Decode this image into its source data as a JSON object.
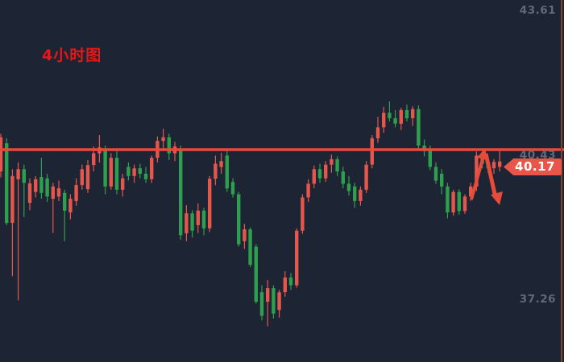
{
  "header": {
    "title": "4小时图"
  },
  "price_axis": {
    "top": "43.61",
    "mid": "40.43",
    "bottom": "37.26",
    "current": "40.17"
  },
  "colors": {
    "background": "#1d2433",
    "candle_up": "#e4574c",
    "candle_down": "#2ea04d",
    "resistance_line": "#e74b3a",
    "annotation_arrow": "#e74b3a",
    "badge": "#e8564b",
    "title_red": "#e81616",
    "axis_text": "#5f6979",
    "axis_border": "#7c4431"
  },
  "chart_data": {
    "type": "candlestick",
    "title": "4小时图",
    "grid": false,
    "legend": false,
    "price_axis_labels": [
      43.61,
      40.43,
      37.26
    ],
    "resistance_level": 40.43,
    "current_price": 40.17,
    "ylim": [
      35.8,
      43.7
    ],
    "up_color": "#e4574c",
    "down_color": "#2ea04d",
    "annotation": {
      "type": "arrow",
      "direction": "up-to-resistance-then-down",
      "color": "#e74b3a"
    },
    "candles": [
      [
        39.95,
        40.78,
        39.82,
        40.7
      ],
      [
        40.57,
        40.68,
        38.77,
        38.82
      ],
      [
        38.82,
        40.0,
        37.65,
        39.85
      ],
      [
        39.78,
        40.15,
        37.12,
        40.0
      ],
      [
        40.0,
        40.1,
        38.95,
        39.7
      ],
      [
        39.26,
        39.8,
        39.1,
        39.69
      ],
      [
        39.5,
        39.85,
        39.38,
        39.78
      ],
      [
        39.83,
        40.25,
        39.35,
        39.48
      ],
      [
        39.8,
        39.9,
        39.28,
        39.4
      ],
      [
        39.35,
        39.7,
        38.6,
        39.62
      ],
      [
        39.4,
        39.75,
        39.3,
        39.58
      ],
      [
        39.48,
        39.55,
        38.42,
        39.09
      ],
      [
        39.05,
        39.45,
        38.9,
        39.35
      ],
      [
        39.3,
        39.8,
        39.2,
        39.65
      ],
      [
        39.65,
        40.1,
        39.55,
        40.0
      ],
      [
        39.56,
        40.2,
        39.48,
        40.09
      ],
      [
        40.09,
        40.5,
        39.95,
        40.35
      ],
      [
        40.35,
        40.75,
        40.15,
        40.48
      ],
      [
        40.45,
        40.52,
        39.45,
        39.62
      ],
      [
        39.62,
        40.35,
        39.55,
        40.25
      ],
      [
        40.25,
        40.4,
        39.45,
        39.55
      ],
      [
        39.55,
        39.9,
        39.4,
        39.8
      ],
      [
        40.05,
        40.15,
        39.75,
        39.85
      ],
      [
        39.85,
        40.1,
        39.7,
        40.02
      ],
      [
        40.02,
        40.12,
        39.8,
        39.9
      ],
      [
        39.9,
        40.05,
        39.7,
        39.78
      ],
      [
        39.78,
        40.3,
        39.7,
        40.25
      ],
      [
        40.25,
        40.72,
        40.15,
        40.62
      ],
      [
        40.62,
        40.89,
        40.4,
        40.7
      ],
      [
        40.7,
        40.78,
        40.2,
        40.35
      ],
      [
        40.35,
        40.6,
        40.18,
        40.5
      ],
      [
        40.45,
        40.52,
        38.45,
        38.55
      ],
      [
        38.59,
        39.21,
        38.42,
        39.03
      ],
      [
        39.03,
        39.1,
        38.5,
        38.65
      ],
      [
        38.77,
        39.25,
        38.6,
        39.09
      ],
      [
        39.09,
        39.15,
        38.55,
        38.7
      ],
      [
        38.7,
        39.85,
        38.62,
        39.79
      ],
      [
        39.79,
        40.3,
        39.65,
        40.12
      ],
      [
        40.05,
        40.36,
        39.9,
        40.18
      ],
      [
        40.3,
        40.4,
        39.5,
        39.58
      ],
      [
        39.72,
        39.8,
        39.38,
        39.45
      ],
      [
        39.45,
        39.5,
        38.3,
        38.35
      ],
      [
        38.42,
        38.8,
        38.25,
        38.68
      ],
      [
        38.68,
        38.72,
        37.85,
        37.9
      ],
      [
        38.3,
        38.35,
        37.05,
        37.09
      ],
      [
        37.3,
        37.45,
        36.68,
        36.78
      ],
      [
        37.09,
        37.57,
        36.55,
        37.39
      ],
      [
        37.39,
        37.45,
        36.72,
        36.83
      ],
      [
        36.91,
        37.35,
        36.74,
        37.3
      ],
      [
        37.3,
        37.76,
        37.2,
        37.62
      ],
      [
        37.62,
        37.72,
        37.35,
        37.45
      ],
      [
        37.45,
        38.7,
        37.4,
        38.65
      ],
      [
        38.65,
        39.45,
        38.58,
        39.38
      ],
      [
        39.38,
        39.78,
        39.28,
        39.68
      ],
      [
        39.68,
        40.08,
        39.58,
        40.0
      ],
      [
        40.0,
        40.12,
        39.7,
        39.8
      ],
      [
        39.8,
        40.18,
        39.72,
        40.1
      ],
      [
        40.1,
        40.32,
        39.92,
        40.22
      ],
      [
        40.22,
        40.28,
        39.85,
        39.95
      ],
      [
        39.95,
        40.05,
        39.58,
        39.68
      ],
      [
        39.68,
        39.85,
        39.42,
        39.52
      ],
      [
        39.62,
        39.7,
        39.15,
        39.3
      ],
      [
        39.3,
        39.62,
        39.2,
        39.55
      ],
      [
        39.55,
        40.18,
        39.48,
        40.1
      ],
      [
        40.1,
        40.75,
        40.02,
        40.68
      ],
      [
        40.68,
        41.15,
        40.58,
        40.92
      ],
      [
        40.92,
        41.37,
        40.8,
        41.24
      ],
      [
        41.24,
        41.49,
        41.05,
        41.12
      ],
      [
        41.12,
        41.3,
        40.92,
        41.0
      ],
      [
        41.0,
        41.35,
        40.86,
        41.3
      ],
      [
        41.3,
        41.42,
        41.05,
        41.12
      ],
      [
        41.12,
        41.38,
        40.95,
        41.32
      ],
      [
        41.32,
        41.4,
        40.45,
        40.52
      ],
      [
        40.52,
        40.65,
        40.28,
        40.4
      ],
      [
        40.4,
        40.52,
        39.98,
        40.05
      ],
      [
        40.05,
        40.15,
        39.68,
        39.75
      ],
      [
        39.9,
        40.0,
        39.45,
        39.62
      ],
      [
        39.62,
        39.7,
        38.92,
        39.05
      ],
      [
        39.05,
        39.55,
        38.98,
        39.5
      ],
      [
        39.5,
        39.56,
        39.0,
        39.08
      ],
      [
        39.08,
        39.45,
        39.02,
        39.4
      ],
      [
        39.4,
        39.7,
        39.3,
        39.62
      ],
      [
        39.62,
        40.39,
        39.52,
        40.3
      ],
      [
        40.3,
        40.38,
        40.02,
        40.12
      ],
      [
        40.12,
        40.25,
        39.92,
        40.02
      ],
      [
        40.02,
        40.22,
        39.9,
        40.16
      ],
      [
        40.05,
        40.4,
        39.95,
        40.17
      ]
    ]
  }
}
